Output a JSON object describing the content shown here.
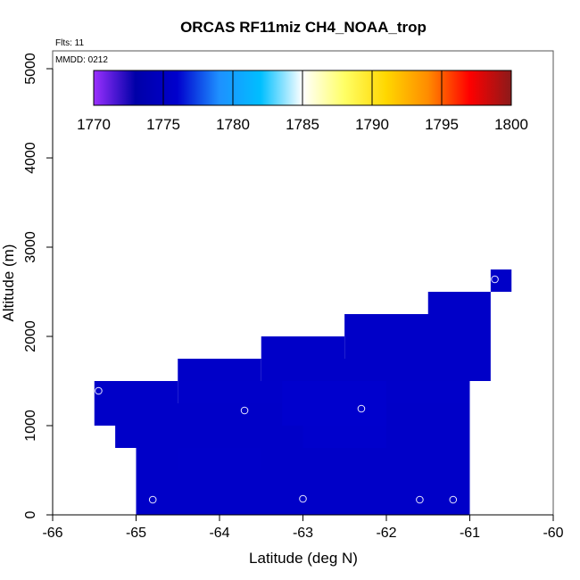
{
  "chart_data": {
    "type": "heatmap",
    "title": "ORCAS RF11miz CH4_NOAA_trop",
    "xlabel": "Latitude (deg N)",
    "ylabel": "Altitude (m)",
    "xlim": [
      -66,
      -60
    ],
    "ylim": [
      0,
      5200
    ],
    "xticks": [
      -66,
      -65,
      -64,
      -63,
      -62,
      -61,
      -60
    ],
    "yticks": [
      0,
      1000,
      2000,
      3000,
      4000,
      5000
    ],
    "flights_label": "Flts: 11",
    "date_label": "MMDD: 0212",
    "colorbar": {
      "min": 1770,
      "max": 1800,
      "ticks": [
        1770,
        1775,
        1780,
        1785,
        1790,
        1795,
        1800
      ],
      "stops": [
        "#9b30ff",
        "#0000a8",
        "#0000cd",
        "#1e90ff",
        "#00bfff",
        "#ffffff",
        "#ffff66",
        "#ffd700",
        "#ff8c00",
        "#ff0000",
        "#8b1a1a"
      ]
    },
    "cells": [
      {
        "lat0": -65.5,
        "lat1": -64.5,
        "alt0": 1250,
        "alt1": 1500,
        "value": 1775.6
      },
      {
        "lat0": -64.5,
        "lat1": -63.5,
        "alt0": 1500,
        "alt1": 1750,
        "value": 1775.6
      },
      {
        "lat0": -63.5,
        "lat1": -62.5,
        "alt0": 1750,
        "alt1": 2000,
        "value": 1775.6
      },
      {
        "lat0": -62.5,
        "lat1": -61.5,
        "alt0": 2000,
        "alt1": 2250,
        "value": 1775.6
      },
      {
        "lat0": -61.5,
        "lat1": -60.75,
        "alt0": 2250,
        "alt1": 2500,
        "value": 1775.6
      },
      {
        "lat0": -60.75,
        "lat1": -60.5,
        "alt0": 2500,
        "alt1": 2750,
        "value": 1775.6
      },
      {
        "lat0": -65.5,
        "lat1": -61,
        "alt0": 1000,
        "alt1": 1250,
        "value": 1775.6
      },
      {
        "lat0": -64.5,
        "lat1": -61,
        "alt0": 1250,
        "alt1": 1500,
        "value": 1775.7
      },
      {
        "lat0": -63.5,
        "lat1": -60.75,
        "alt0": 1500,
        "alt1": 1750,
        "value": 1775.6
      },
      {
        "lat0": -62.5,
        "lat1": -60.75,
        "alt0": 1750,
        "alt1": 2250,
        "value": 1775.6
      },
      {
        "lat0": -65.25,
        "lat1": -61,
        "alt0": 750,
        "alt1": 1000,
        "value": 1775.6
      },
      {
        "lat0": -65,
        "lat1": -61,
        "alt0": 0,
        "alt1": 750,
        "value": 1775.6
      },
      {
        "lat0": -63.25,
        "lat1": -62,
        "alt0": 1000,
        "alt1": 1500,
        "value": 1776.0
      },
      {
        "lat0": -63,
        "lat1": -62,
        "alt0": 750,
        "alt1": 1000,
        "value": 1775.9
      },
      {
        "lat0": -64.5,
        "lat1": -63.5,
        "alt0": 500,
        "alt1": 750,
        "value": 1775.7
      }
    ],
    "points": [
      {
        "lat": -65.45,
        "alt": 1390
      },
      {
        "lat": -64.8,
        "alt": 170
      },
      {
        "lat": -63.7,
        "alt": 1170
      },
      {
        "lat": -63.0,
        "alt": 180
      },
      {
        "lat": -62.3,
        "alt": 1190
      },
      {
        "lat": -61.6,
        "alt": 170
      },
      {
        "lat": -61.2,
        "alt": 170
      },
      {
        "lat": -60.7,
        "alt": 2640
      }
    ]
  }
}
